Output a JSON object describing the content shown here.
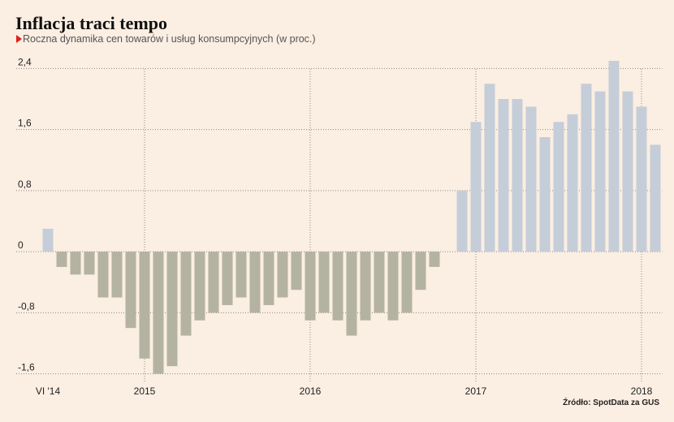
{
  "chart_data": {
    "type": "bar",
    "title": "Inflacja traci tempo",
    "subtitle": "Roczna dynamika cen towarów i usług konsumpcyjnych (w proc.)",
    "source": "Źródło: SpotData za GUS",
    "categories": [
      "VI '14",
      null,
      null,
      null,
      null,
      null,
      null,
      "2015",
      null,
      null,
      null,
      null,
      null,
      null,
      null,
      null,
      null,
      null,
      null,
      "2016",
      null,
      null,
      null,
      null,
      null,
      null,
      null,
      null,
      null,
      null,
      null,
      "2017",
      null,
      null,
      null,
      null,
      null,
      null,
      null,
      null,
      null,
      null,
      null,
      "2018",
      null
    ],
    "values": [
      0.3,
      -0.2,
      -0.3,
      -0.3,
      -0.6,
      -0.6,
      -1.0,
      -1.4,
      -1.6,
      -1.5,
      -1.1,
      -0.9,
      -0.8,
      -0.7,
      -0.6,
      -0.8,
      -0.7,
      -0.6,
      -0.5,
      -0.9,
      -0.8,
      -0.9,
      -1.1,
      -0.9,
      -0.8,
      -0.9,
      -0.8,
      -0.5,
      -0.2,
      0.0,
      0.8,
      1.7,
      2.2,
      2.0,
      2.0,
      1.9,
      1.5,
      1.7,
      1.8,
      2.2,
      2.1,
      2.5,
      2.1,
      1.9,
      1.4
    ],
    "positive_color": "#c5cdd9",
    "negative_color": "#b4b3a1",
    "ylim": [
      -1.7,
      2.5
    ],
    "yticks": [
      {
        "value": -1.6,
        "label": "-1,6"
      },
      {
        "value": -0.8,
        "label": "-0,8"
      },
      0,
      {
        "value": 0.8,
        "label": "0,8"
      },
      {
        "value": 1.6,
        "label": "1,6"
      },
      {
        "value": 2.4,
        "label": "2,4"
      }
    ],
    "grid": true
  }
}
